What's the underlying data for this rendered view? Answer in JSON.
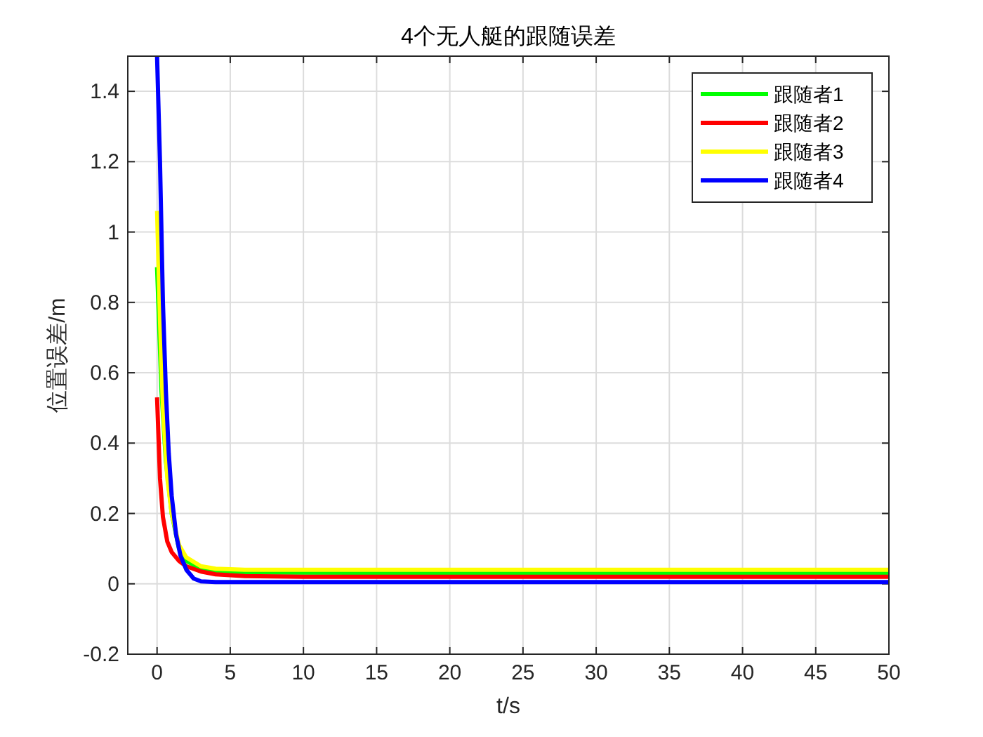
{
  "chart_data": {
    "type": "line",
    "title": "4个无人艇的跟随误差",
    "xlabel": "t/s",
    "ylabel": "位置误差/m",
    "xlim": [
      -2,
      50
    ],
    "xticks": [
      0,
      5,
      10,
      15,
      20,
      25,
      30,
      35,
      40,
      45,
      50
    ],
    "ylim": [
      -0.2,
      1.5
    ],
    "yticks": [
      -0.2,
      0,
      0.2,
      0.4,
      0.6,
      0.8,
      1,
      1.2,
      1.4
    ],
    "grid": true,
    "legend": "top right",
    "line_style": "solid",
    "marker": "none",
    "series": [
      {
        "name": "跟随者1",
        "color": "#00ff00",
        "x": [
          0,
          0.3,
          0.6,
          1,
          1.5,
          2,
          3,
          4,
          6,
          50
        ],
        "values": [
          0.9,
          0.55,
          0.35,
          0.2,
          0.1,
          0.065,
          0.042,
          0.035,
          0.032,
          0.03
        ]
      },
      {
        "name": "跟随者2",
        "color": "#ff0000",
        "x": [
          0,
          0.2,
          0.4,
          0.7,
          1,
          1.5,
          2,
          3,
          4,
          6,
          10,
          50
        ],
        "values": [
          0.53,
          0.3,
          0.19,
          0.12,
          0.09,
          0.065,
          0.05,
          0.035,
          0.027,
          0.022,
          0.02,
          0.02
        ]
      },
      {
        "name": "跟随者3",
        "color": "#ffff00",
        "x": [
          0,
          0.2,
          0.4,
          0.7,
          1,
          1.5,
          2,
          3,
          4,
          6,
          50
        ],
        "values": [
          1.06,
          0.75,
          0.5,
          0.3,
          0.2,
          0.11,
          0.075,
          0.05,
          0.043,
          0.04,
          0.04
        ]
      },
      {
        "name": "跟随者4",
        "color": "#0000ff",
        "x": [
          0,
          0.2,
          0.4,
          0.6,
          0.8,
          1,
          1.3,
          1.6,
          2,
          2.5,
          3,
          4,
          50
        ],
        "values": [
          1.5,
          1.2,
          0.8,
          0.55,
          0.37,
          0.25,
          0.14,
          0.08,
          0.04,
          0.015,
          0.007,
          0.005,
          0.005
        ]
      }
    ]
  }
}
